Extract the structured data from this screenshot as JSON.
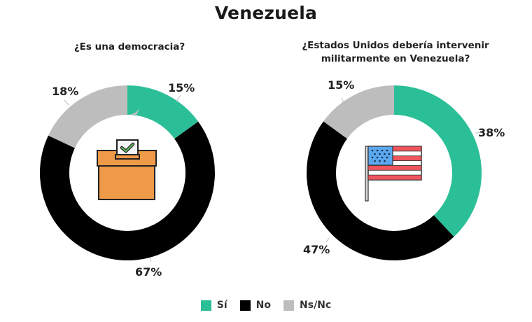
{
  "title": "Venezuela",
  "colors": {
    "si": "#2BBF98",
    "no": "#000000",
    "nsnc": "#BDBDBD"
  },
  "legend": [
    {
      "label": "Sí",
      "color": "#2BBF98"
    },
    {
      "label": "No",
      "color": "#000000"
    },
    {
      "label": "Ns/Nc",
      "color": "#BDBDBD"
    }
  ],
  "charts": [
    {
      "question": "¿Es una democracia?",
      "icon": "ballot-box-icon",
      "labels": {
        "si": "15%",
        "no": "67%",
        "nsnc": "18%"
      }
    },
    {
      "question_line1": "¿Estados Unidos debería intervenir",
      "question_line2": "militarmente en Venezuela?",
      "icon": "us-flag-icon",
      "labels": {
        "si": "38%",
        "no": "47%",
        "nsnc": "15%"
      }
    }
  ],
  "chart_data": [
    {
      "type": "pie",
      "title": "¿Es una democracia?",
      "categories": [
        "Sí",
        "No",
        "Ns/Nc"
      ],
      "values": [
        15,
        67,
        18
      ],
      "unit": "%",
      "donut": true,
      "legend_position": "bottom"
    },
    {
      "type": "pie",
      "title": "¿Estados Unidos debería intervenir militarmente en Venezuela?",
      "categories": [
        "Sí",
        "No",
        "Ns/Nc"
      ],
      "values": [
        38,
        47,
        15
      ],
      "unit": "%",
      "donut": true,
      "legend_position": "bottom"
    }
  ]
}
